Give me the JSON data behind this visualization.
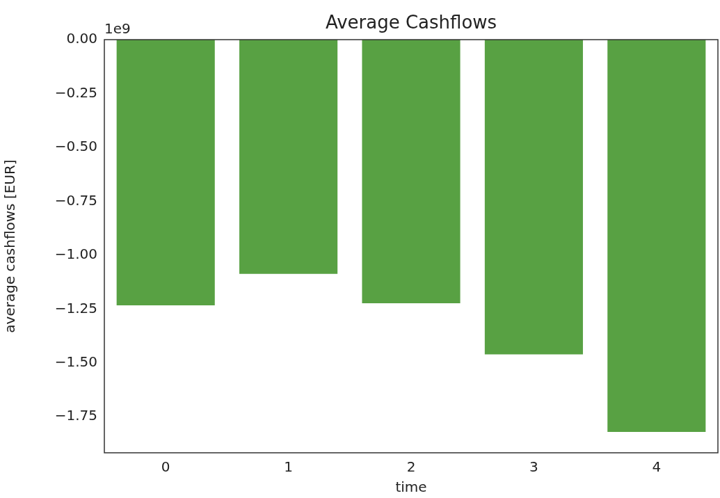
{
  "chart_data": {
    "type": "bar",
    "title": "Average Cashflows",
    "xlabel": "time",
    "ylabel": "average cashflows [EUR]",
    "categories": [
      "0",
      "1",
      "2",
      "3",
      "4"
    ],
    "values": [
      -1.233,
      -1.087,
      -1.223,
      -1.46,
      -1.82
    ],
    "color": "#58a143",
    "ylim": [
      -1.917,
      0
    ],
    "yticks": [
      {
        "value": 0,
        "label": "0.00"
      },
      {
        "value": -0.25,
        "label": "−0.25"
      },
      {
        "value": -0.5,
        "label": "−0.50"
      },
      {
        "value": -0.75,
        "label": "−0.75"
      },
      {
        "value": -1,
        "label": "−1.00"
      },
      {
        "value": -1.25,
        "label": "−1.25"
      },
      {
        "value": -1.5,
        "label": "−1.50"
      },
      {
        "value": -1.75,
        "label": "−1.75"
      }
    ],
    "annotations": [
      "1e9"
    ],
    "grid": false,
    "legend": false
  }
}
